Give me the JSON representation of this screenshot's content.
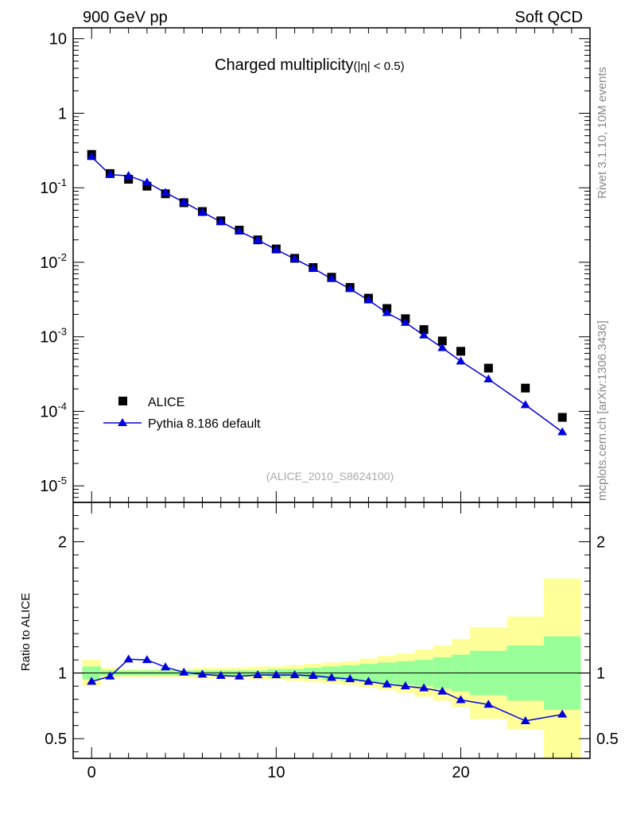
{
  "header": {
    "left": "900 GeV pp",
    "right": "Soft QCD"
  },
  "side_labels": {
    "rivet": "Rivet 3.1.10,  10M events",
    "mcplots": "mcplots.cern.ch [arXiv:1306.3436]"
  },
  "chart_data": [
    {
      "type": "scatter",
      "panel": "main",
      "title_main": "Charged multiplicity",
      "title_sub": "(|η| < 0.5)",
      "yscale": "log",
      "xlim": [
        -1,
        27
      ],
      "ylim": [
        6e-06,
        14
      ],
      "ytick_labels": [
        {
          "base": "10",
          "exp": "-5",
          "value": 1e-05
        },
        {
          "base": "10",
          "exp": "-4",
          "value": 0.0001
        },
        {
          "base": "10",
          "exp": "-3",
          "value": 0.001
        },
        {
          "base": "10",
          "exp": "-2",
          "value": 0.01
        },
        {
          "base": "10",
          "exp": "-1",
          "value": 0.1
        },
        {
          "base": "1",
          "exp": "",
          "value": 1
        },
        {
          "base": "10",
          "exp": "",
          "value": 10
        }
      ],
      "reference_label": "(ALICE_2010_S8624100)",
      "legend": {
        "position": "bottom-left",
        "data_label": "ALICE",
        "mc_label": "Pythia 8.186 default"
      },
      "series": [
        {
          "name": "ALICE",
          "marker": "square",
          "color": "#000000",
          "x": [
            0,
            1,
            2,
            3,
            4,
            5,
            6,
            7,
            8,
            9,
            10,
            11,
            12,
            13,
            14,
            15,
            16,
            17,
            18,
            19,
            20,
            21.5,
            23.5,
            25.5
          ],
          "y": [
            0.28,
            0.155,
            0.13,
            0.105,
            0.083,
            0.063,
            0.048,
            0.036,
            0.027,
            0.02,
            0.0151,
            0.0113,
            0.0085,
            0.0063,
            0.0046,
            0.0033,
            0.0024,
            0.00175,
            0.00125,
            0.00088,
            0.00064,
            0.00038,
            0.000205,
            8.3e-05
          ]
        },
        {
          "name": "Pythia 8.186 default",
          "marker": "triangle",
          "color": "#0000dd",
          "x": [
            0,
            1,
            2,
            3,
            4,
            5,
            6,
            7,
            8,
            9,
            10,
            11,
            12,
            13,
            14,
            15,
            16,
            17,
            18,
            19,
            20,
            21.5,
            23.5,
            25.5
          ],
          "y": [
            0.26,
            0.15,
            0.145,
            0.118,
            0.086,
            0.064,
            0.047,
            0.035,
            0.026,
            0.0199,
            0.0148,
            0.0111,
            0.0083,
            0.006,
            0.0044,
            0.0031,
            0.0021,
            0.00155,
            0.00105,
            0.00071,
            0.00047,
            0.00027,
            0.000122,
            5.28e-05
          ]
        }
      ]
    },
    {
      "type": "line",
      "panel": "ratio",
      "ylabel": "Ratio to ALICE",
      "xlim": [
        -1,
        27
      ],
      "ylim": [
        0.35,
        2.3
      ],
      "yticks": [
        0.5,
        1,
        2
      ],
      "ytick_labels": [
        "0.5",
        "1",
        "2"
      ],
      "xticks": [
        0,
        10,
        20
      ],
      "xtick_labels": [
        "0",
        "10",
        "20"
      ],
      "bands": {
        "x_edges": [
          -0.5,
          0.5,
          1.5,
          2.5,
          3.5,
          4.5,
          5.5,
          6.5,
          7.5,
          8.5,
          9.5,
          10.5,
          11.5,
          12.5,
          13.5,
          14.5,
          15.5,
          16.5,
          17.5,
          18.5,
          19.5,
          20.5,
          22.5,
          24.5,
          26.5
        ],
        "stat_half_width": [
          0.05,
          0.02,
          0.02,
          0.02,
          0.02,
          0.02,
          0.02,
          0.02,
          0.02,
          0.02,
          0.03,
          0.03,
          0.04,
          0.05,
          0.06,
          0.07,
          0.08,
          0.09,
          0.1,
          0.12,
          0.14,
          0.17,
          0.21,
          0.28
        ],
        "total_half_width": [
          0.1,
          0.04,
          0.03,
          0.03,
          0.03,
          0.03,
          0.04,
          0.04,
          0.04,
          0.05,
          0.05,
          0.06,
          0.07,
          0.08,
          0.09,
          0.11,
          0.13,
          0.15,
          0.18,
          0.21,
          0.26,
          0.35,
          0.43,
          0.72
        ],
        "stat_color": "#99ff99",
        "total_color": "#ffff99"
      },
      "series": [
        {
          "name": "Pythia 8.186 default",
          "color": "#0000dd",
          "x": [
            0,
            1,
            2,
            3,
            4,
            5,
            6,
            7,
            8,
            9,
            10,
            11,
            12,
            13,
            14,
            15,
            16,
            17,
            18,
            19,
            20,
            21.5,
            23.5,
            25.5
          ],
          "y": [
            0.935,
            0.975,
            1.105,
            1.1,
            1.045,
            1.005,
            0.99,
            0.98,
            0.975,
            0.985,
            0.985,
            0.985,
            0.98,
            0.965,
            0.955,
            0.935,
            0.915,
            0.9,
            0.885,
            0.86,
            0.795,
            0.76,
            0.635,
            0.685
          ]
        }
      ]
    }
  ]
}
